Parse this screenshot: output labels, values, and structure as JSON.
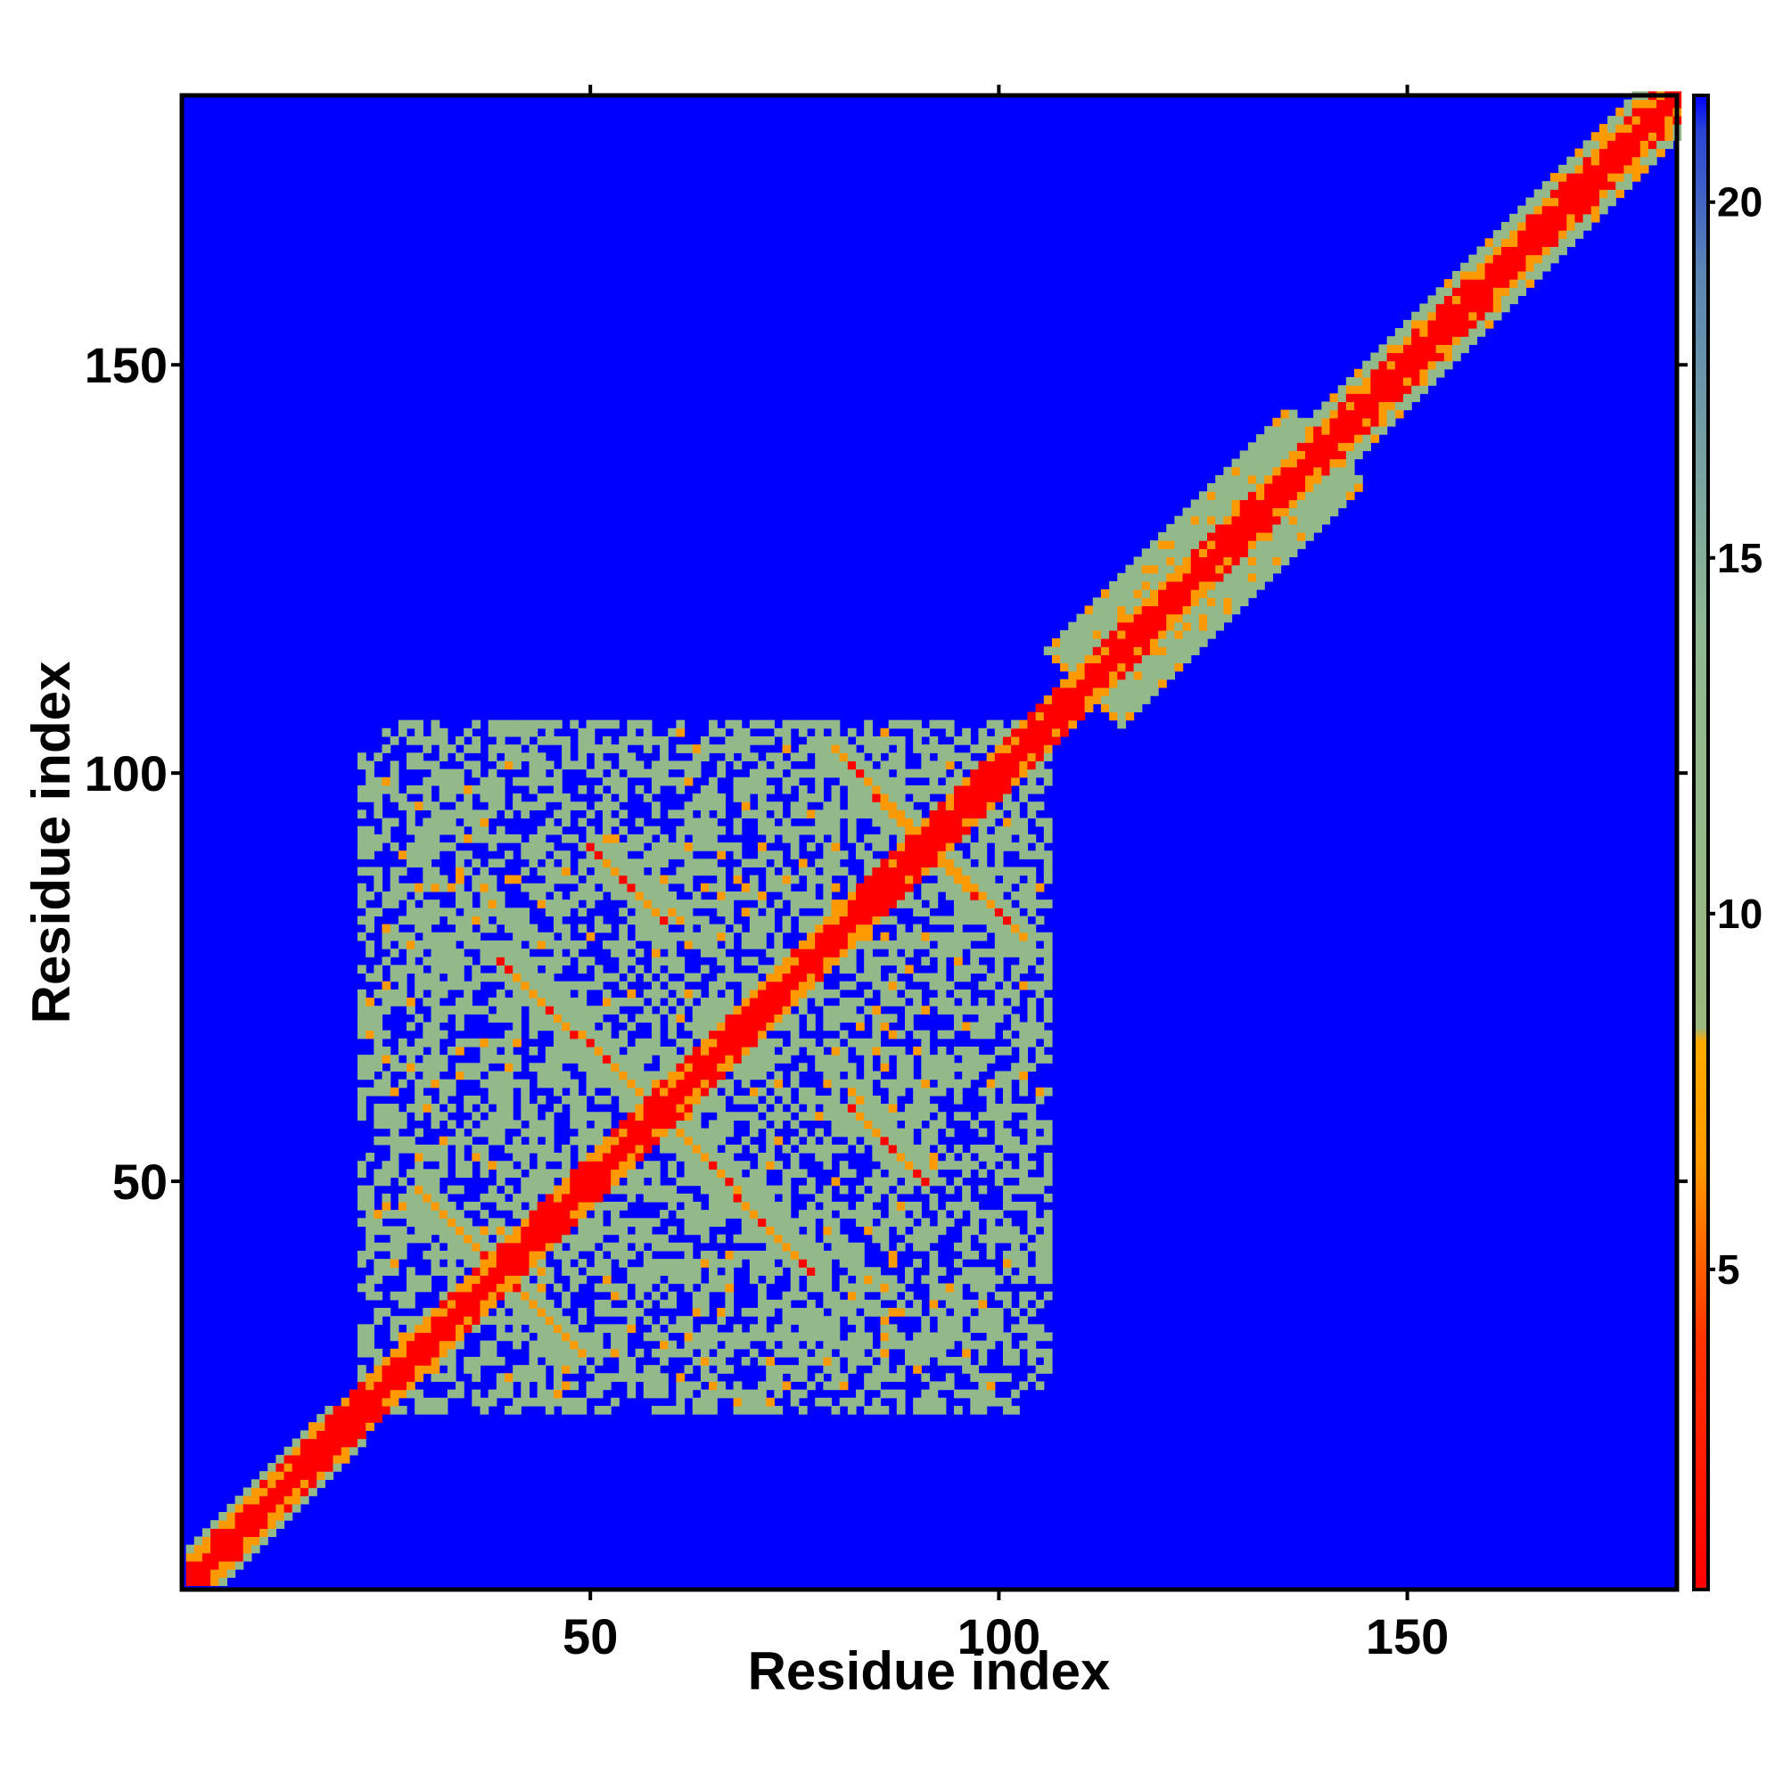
{
  "chart_data": {
    "type": "heatmap",
    "title": "",
    "xlabel": "Residue index",
    "ylabel": "Residue index",
    "x_ticks": [
      50,
      100,
      150
    ],
    "y_ticks": [
      50,
      100,
      150
    ],
    "xlim": [
      1,
      183
    ],
    "ylim": [
      1,
      183
    ],
    "grid": false,
    "symmetric": true,
    "colorbar": {
      "position": "right",
      "ticks": [
        5,
        10,
        15,
        20
      ],
      "range": [
        0.5,
        21.5
      ],
      "stops": [
        {
          "value": 0.5,
          "color": "#ff0000"
        },
        {
          "value": 4.0,
          "color": "#ff3300"
        },
        {
          "value": 6.5,
          "color": "#ff9900"
        },
        {
          "value": 8.2,
          "color": "#ffaa00"
        },
        {
          "value": 8.4,
          "color": "#9ab87f"
        },
        {
          "value": 14.0,
          "color": "#8fb892"
        },
        {
          "value": 19.0,
          "color": "#5c86b3"
        },
        {
          "value": 21.0,
          "color": "#2a45d6"
        },
        {
          "value": 21.5,
          "color": "#0000ff"
        }
      ]
    },
    "background_value": 21.5,
    "background_color": "#0000ff",
    "colors": {
      "near": "#ff0000",
      "mid": "#ff9900",
      "far": "#93b98a",
      "none": "#0000ff"
    },
    "features": {
      "diagonal_band": [
        {
          "from": 1,
          "to": 20,
          "width": 4
        },
        {
          "from": 20,
          "to": 110,
          "width": 3
        },
        {
          "from": 110,
          "to": 140,
          "width": 9
        },
        {
          "from": 140,
          "to": 183,
          "width": 5
        }
      ],
      "domain_region": {
        "x": [
          22,
          106
        ],
        "y": [
          25,
          102
        ]
      },
      "sheet_contacts": [
        {
          "x": [
            81,
            101
          ],
          "y": [
            102,
            81
          ],
          "type": "antiparallel"
        },
        {
          "x": [
            51,
            58
          ],
          "y": [
            90,
            83
          ],
          "type": "antiparallel"
        },
        {
          "x": [
            40,
            47
          ],
          "y": [
            76,
            69
          ],
          "type": "antiparallel"
        },
        {
          "x": [
            71,
            77
          ],
          "y": [
            47,
            40
          ],
          "type": "antiparallel"
        },
        {
          "x": [
            83,
            89
          ],
          "y": [
            60,
            53
          ],
          "type": "antiparallel"
        },
        {
          "x": [
            30,
            37
          ],
          "y": [
            48,
            41
          ],
          "type": "antiparallel"
        },
        {
          "x": [
            39,
            46
          ],
          "y": [
            38,
            31
          ],
          "type": "antiparallel"
        },
        {
          "x": [
            50,
            57
          ],
          "y": [
            67,
            60
          ],
          "type": "antiparallel"
        },
        {
          "x": [
            58,
            66
          ],
          "y": [
            58,
            50
          ],
          "type": "antiparallel"
        }
      ]
    }
  }
}
